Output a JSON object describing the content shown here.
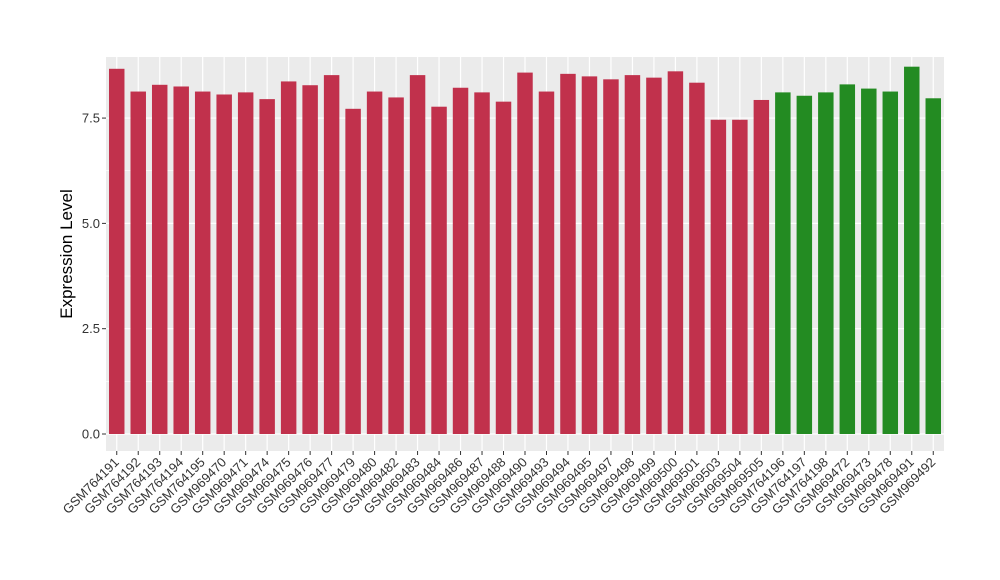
{
  "chart_data": {
    "type": "bar",
    "title": "",
    "xlabel": "",
    "ylabel": "Expression Level",
    "ylim": [
      0,
      8.95
    ],
    "yticks": [
      0.0,
      2.5,
      5.0,
      7.5
    ],
    "ytick_labels": [
      "0.0",
      "2.5",
      "5.0",
      "7.5"
    ],
    "grid": true,
    "legend": "none",
    "colors": {
      "panel": "#EBEBEB",
      "grid": "#FFFFFF",
      "group_a": "#C1314C",
      "group_b": "#238B22"
    },
    "categories": [
      "GSM764191",
      "GSM764192",
      "GSM764193",
      "GSM764194",
      "GSM764195",
      "GSM969470",
      "GSM969471",
      "GSM969474",
      "GSM969475",
      "GSM969476",
      "GSM969477",
      "GSM969479",
      "GSM969480",
      "GSM969482",
      "GSM969483",
      "GSM969484",
      "GSM969486",
      "GSM969487",
      "GSM969488",
      "GSM969490",
      "GSM969493",
      "GSM969494",
      "GSM969495",
      "GSM969497",
      "GSM969498",
      "GSM969499",
      "GSM969500",
      "GSM969501",
      "GSM969503",
      "GSM969504",
      "GSM969505",
      "GSM764196",
      "GSM764197",
      "GSM764198",
      "GSM969472",
      "GSM969473",
      "GSM969478",
      "GSM969491",
      "GSM969492"
    ],
    "values": [
      8.67,
      8.13,
      8.29,
      8.25,
      8.13,
      8.06,
      8.11,
      7.95,
      8.37,
      8.28,
      8.52,
      7.72,
      8.13,
      7.99,
      8.52,
      7.77,
      8.22,
      8.11,
      7.89,
      8.58,
      8.13,
      8.55,
      8.49,
      8.42,
      8.52,
      8.46,
      8.61,
      8.34,
      7.46,
      7.46,
      7.93,
      8.11,
      8.03,
      8.11,
      8.3,
      8.2,
      8.13,
      8.72,
      7.97
    ],
    "groups": [
      "a",
      "a",
      "a",
      "a",
      "a",
      "a",
      "a",
      "a",
      "a",
      "a",
      "a",
      "a",
      "a",
      "a",
      "a",
      "a",
      "a",
      "a",
      "a",
      "a",
      "a",
      "a",
      "a",
      "a",
      "a",
      "a",
      "a",
      "a",
      "a",
      "a",
      "a",
      "b",
      "b",
      "b",
      "b",
      "b",
      "b",
      "b",
      "b"
    ]
  }
}
